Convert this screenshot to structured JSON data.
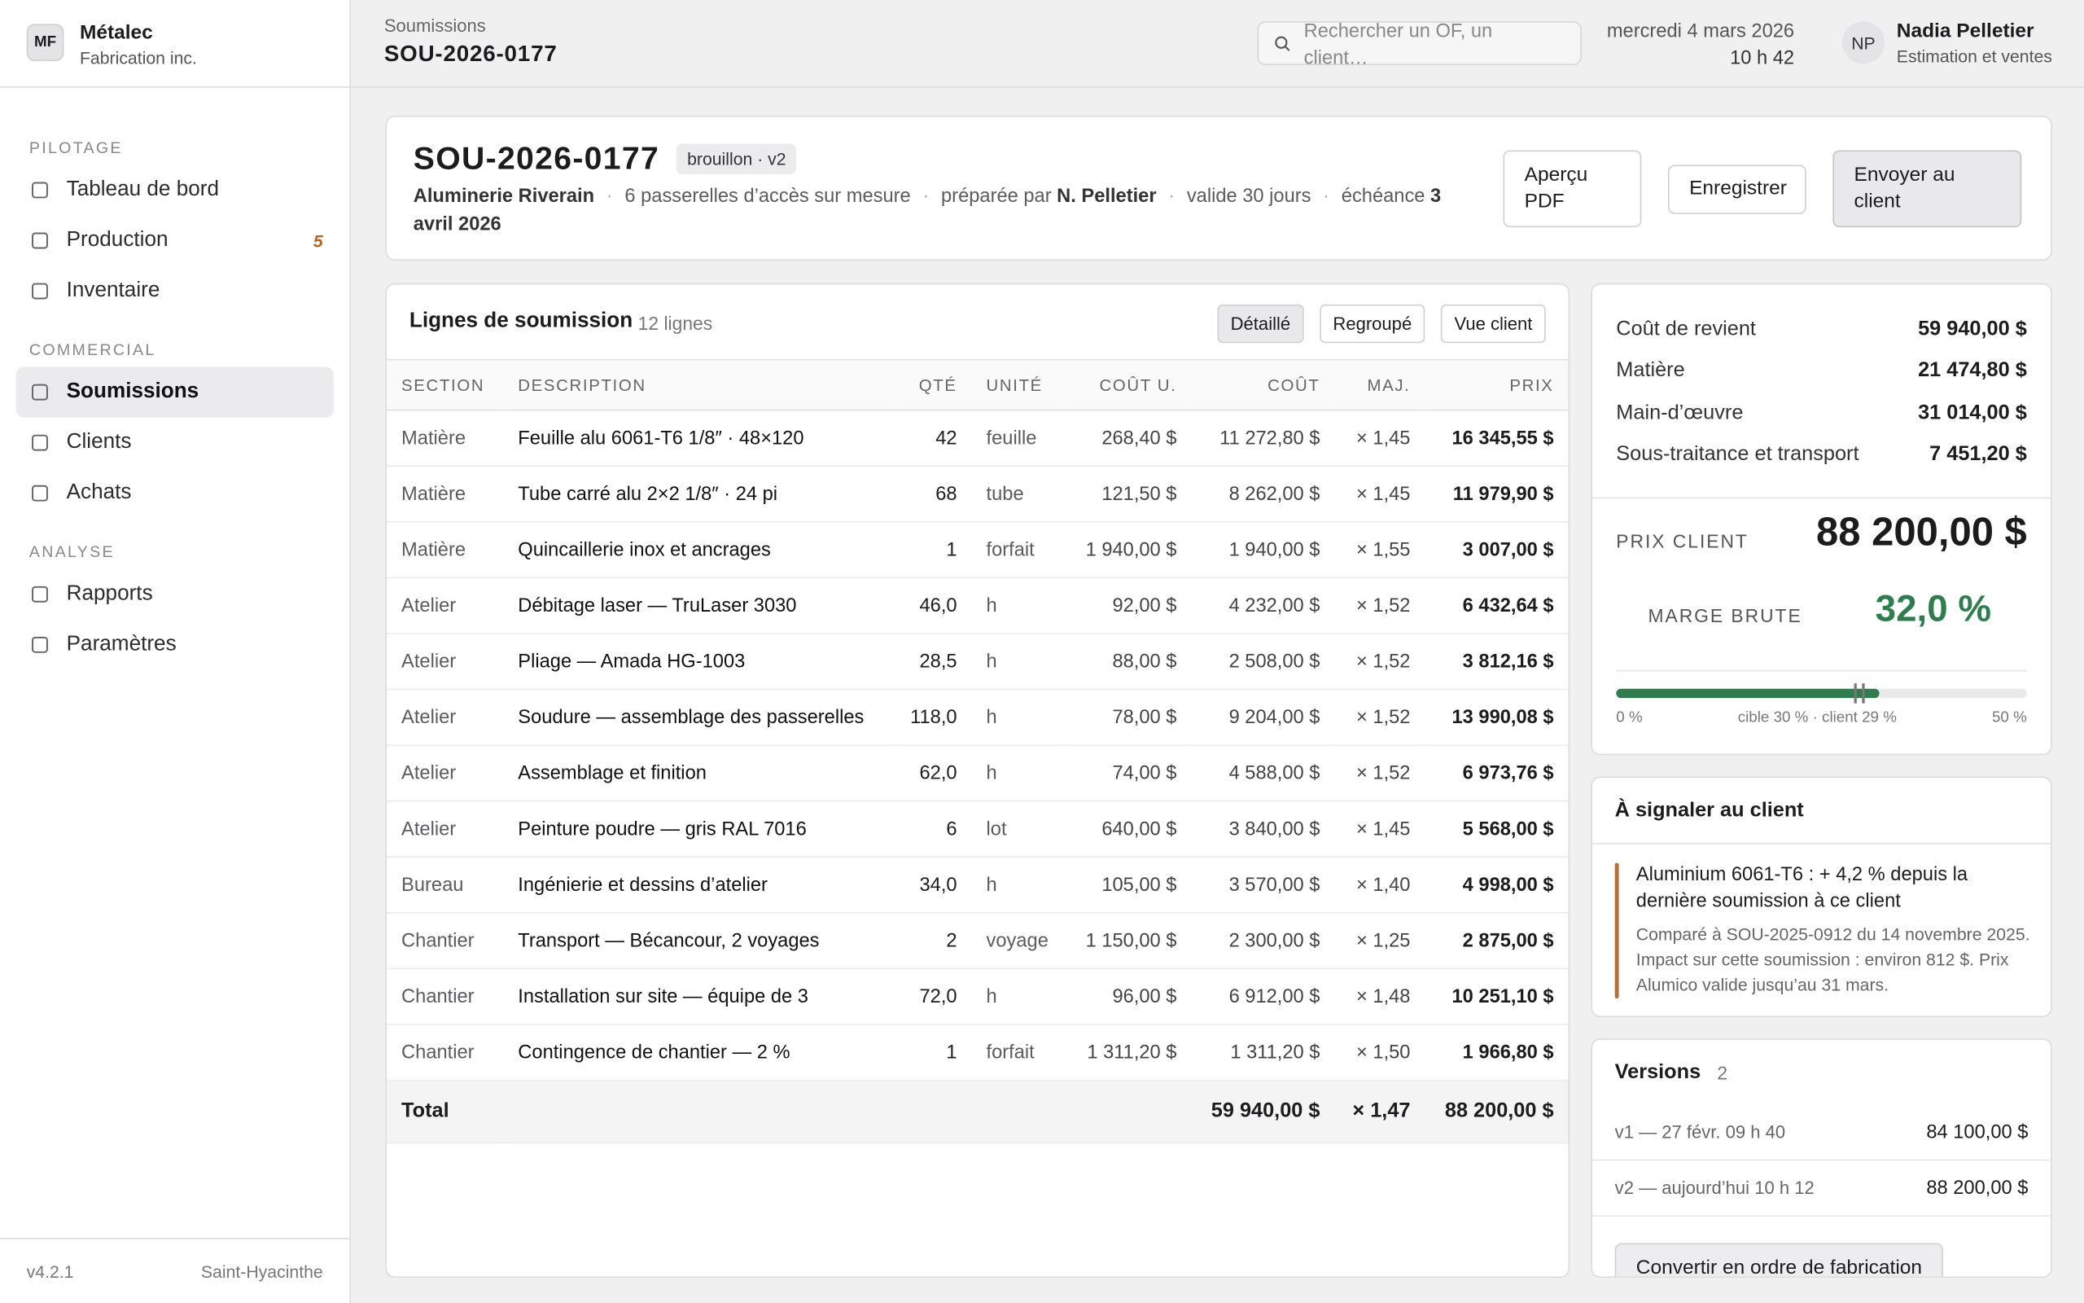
{
  "brand": {
    "initials": "MF",
    "name": "Métalec",
    "subtitle": "Fabrication inc."
  },
  "nav": [
    {
      "title": "PILOTAGE",
      "items": [
        {
          "label": "Tableau de bord"
        },
        {
          "label": "Production",
          "badge": "5"
        },
        {
          "label": "Inventaire"
        }
      ]
    },
    {
      "title": "COMMERCIAL",
      "items": [
        {
          "label": "Soumissions",
          "active": true
        },
        {
          "label": "Clients"
        },
        {
          "label": "Achats"
        }
      ]
    },
    {
      "title": "ANALYSE",
      "items": [
        {
          "label": "Rapports"
        },
        {
          "label": "Paramètres"
        }
      ]
    }
  ],
  "footer": {
    "version": "v4.2.1",
    "location": "Saint-Hyacinthe"
  },
  "topbar": {
    "breadcrumb": "Soumissions",
    "id": "SOU-2026-0177",
    "search_placeholder": "Rechercher un OF, un client…",
    "date": "mercredi 4 mars 2026",
    "time": "10 h 42",
    "user": {
      "initials": "NP",
      "name": "Nadia Pelletier",
      "role": "Estimation et ventes"
    }
  },
  "header": {
    "title": "SOU-2026-0177",
    "badge": "brouillon · v2",
    "client": "Aluminerie Riverain",
    "description": "6 passerelles d’accès sur mesure",
    "prepared_label": "préparée par",
    "preparer": "N. Pelletier",
    "validity": "valide 30 jours",
    "due_label": "échéance",
    "due_date": "3 avril 2026",
    "buttons": [
      "Aperçu PDF",
      "Enregistrer",
      "Envoyer au client"
    ]
  },
  "lines": {
    "title": "Lignes de soumission",
    "count": "12 lignes",
    "views": [
      "Détaillé",
      "Regroupé",
      "Vue client"
    ],
    "active_view": 0,
    "columns": [
      "SECTION",
      "DESCRIPTION",
      "QTÉ",
      "UNITÉ",
      "COÛT U.",
      "COÛT",
      "MAJ.",
      "PRIX"
    ],
    "rows": [
      [
        "Matière",
        "Feuille alu 6061-T6 1/8″ · 48×120",
        "42",
        "feuille",
        "268,40 $",
        "11 272,80 $",
        "× 1,45",
        "16 345,55 $"
      ],
      [
        "Matière",
        "Tube carré alu 2×2 1/8″ · 24 pi",
        "68",
        "tube",
        "121,50 $",
        "8 262,00 $",
        "× 1,45",
        "11 979,90 $"
      ],
      [
        "Matière",
        "Quincaillerie inox et ancrages",
        "1",
        "forfait",
        "1 940,00 $",
        "1 940,00 $",
        "× 1,55",
        "3 007,00 $"
      ],
      [
        "Atelier",
        "Débitage laser — TruLaser 3030",
        "46,0",
        "h",
        "92,00 $",
        "4 232,00 $",
        "× 1,52",
        "6 432,64 $"
      ],
      [
        "Atelier",
        "Pliage — Amada HG-1003",
        "28,5",
        "h",
        "88,00 $",
        "2 508,00 $",
        "× 1,52",
        "3 812,16 $"
      ],
      [
        "Atelier",
        "Soudure — assemblage des passerelles",
        "118,0",
        "h",
        "78,00 $",
        "9 204,00 $",
        "× 1,52",
        "13 990,08 $"
      ],
      [
        "Atelier",
        "Assemblage et finition",
        "62,0",
        "h",
        "74,00 $",
        "4 588,00 $",
        "× 1,52",
        "6 973,76 $"
      ],
      [
        "Atelier",
        "Peinture poudre — gris RAL 7016",
        "6",
        "lot",
        "640,00 $",
        "3 840,00 $",
        "× 1,45",
        "5 568,00 $"
      ],
      [
        "Bureau",
        "Ingénierie et dessins d’atelier",
        "34,0",
        "h",
        "105,00 $",
        "3 570,00 $",
        "× 1,40",
        "4 998,00 $"
      ],
      [
        "Chantier",
        "Transport — Bécancour, 2 voyages",
        "2",
        "voyage",
        "1 150,00 $",
        "2 300,00 $",
        "× 1,25",
        "2 875,00 $"
      ],
      [
        "Chantier",
        "Installation sur site — équipe de 3",
        "72,0",
        "h",
        "96,00 $",
        "6 912,00 $",
        "× 1,48",
        "10 251,10 $"
      ],
      [
        "Chantier",
        "Contingence de chantier — 2 %",
        "1",
        "forfait",
        "1 311,20 $",
        "1 311,20 $",
        "× 1,50",
        "1 966,80 $"
      ]
    ],
    "total": {
      "label": "Total",
      "cost": "59 940,00 $",
      "markup": "× 1,47",
      "price": "88 200,00 $"
    }
  },
  "summary": {
    "rows": [
      [
        "Coût de revient",
        "59 940,00 $"
      ],
      [
        "Matière",
        "21 474,80 $"
      ],
      [
        "Main-d’œuvre",
        "31 014,00 $"
      ],
      [
        "Sous-traitance et transport",
        "7 451,20 $"
      ]
    ],
    "price_label": "PRIX CLIENT",
    "price": "88 200,00 $",
    "margin_label": "MARGE BRUTE",
    "margin": "32,0 %",
    "gauge": {
      "min": 0,
      "max": 50,
      "value": 32,
      "target": 30,
      "client": 29,
      "color": "#2f7d4f",
      "labels": [
        "0 %",
        "cible 30 % · client 29 %",
        "50 %"
      ]
    }
  },
  "alert": {
    "title": "À signaler au client",
    "heading": "Aluminium 6061-T6 : + 4,2 % depuis la dernière soumission à ce client",
    "body": "Comparé à SOU-2025-0912 du 14 novembre 2025. Impact sur cette soumission : environ 812 $. Prix Alumico valide jusqu’au 31 mars."
  },
  "versions": {
    "title": "Versions",
    "count": "2",
    "rows": [
      [
        "v1 — 27 févr. 09 h 40",
        "84 100,00 $"
      ],
      [
        "v2 — aujourd’hui 10 h 12",
        "88 200,00 $"
      ]
    ],
    "button": "Convertir en ordre de fabrication"
  }
}
